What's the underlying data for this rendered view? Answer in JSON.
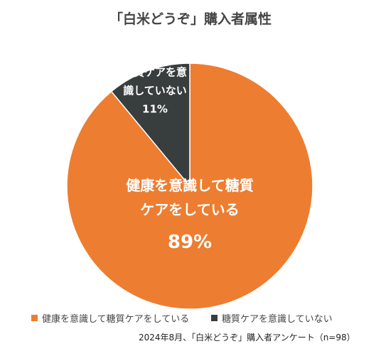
{
  "chart_data": {
    "type": "pie",
    "title": "「白米どうぞ」購入者属性",
    "categories": [
      "健康を意識して糖質ケアをしている",
      "糖質ケアを意識していない"
    ],
    "values": [
      89,
      11
    ],
    "value_labels": [
      "89%",
      "11%"
    ],
    "colors": [
      "#ed7d31",
      "#383d3d"
    ],
    "source": "2024年8月、「白米どうぞ」購入者アンケート（n=98）"
  }
}
